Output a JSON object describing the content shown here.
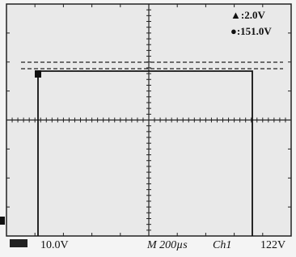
{
  "readouts": {
    "cursor_a": "▲:2.0V",
    "cursor_b": "●:151.0V"
  },
  "status": {
    "ch1_scale": "10.0V",
    "timebase": "M 200µs",
    "trigger_source": "Ch1",
    "trigger_level": "122V"
  }
}
